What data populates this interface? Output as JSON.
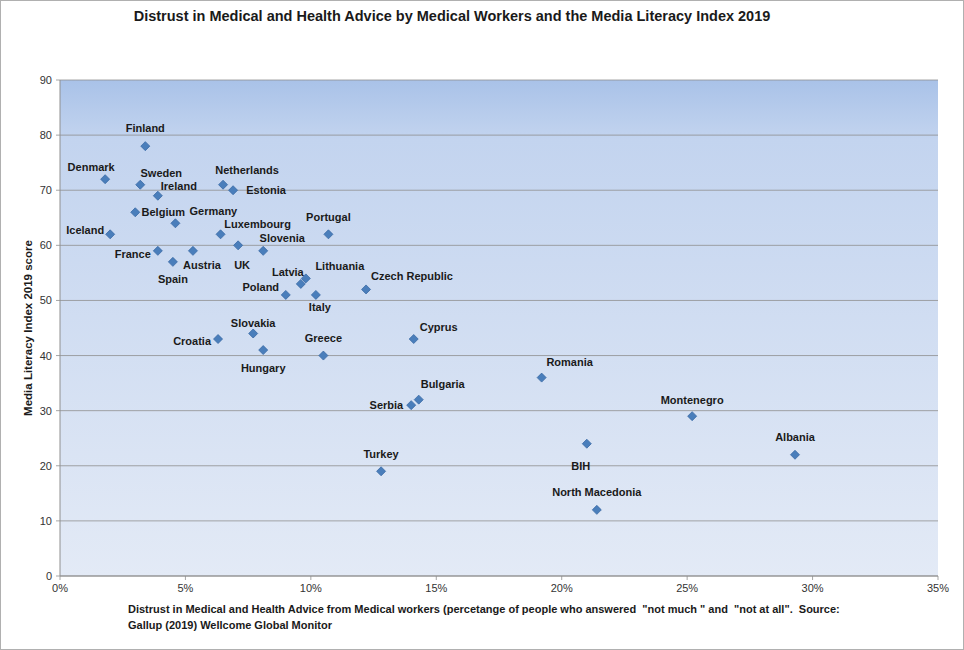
{
  "chart_data": {
    "type": "scatter",
    "title": "Distrust in Medical and Health Advice by Medical Workers and the Media Literacy Index 2019",
    "xlabel": "Distrust in Medical and Health Advice from Medical workers (percetange of people who answered  \"not much \" and  \"not at all\".  Source: Gallup (2019) Wellcome Global Monitor",
    "ylabel": "Media Literacy Index 2019 score",
    "labels": [
      "Finland",
      "Denmark",
      "Sweden",
      "Ireland",
      "Netherlands",
      "Estonia",
      "Belgium",
      "Germany",
      "Iceland",
      "Luxembourg",
      "Portugal",
      "France",
      "Austria",
      "UK",
      "Slovenia",
      "Spain",
      "Latvia",
      "Lithuania",
      "Poland",
      "Italy",
      "Czech Republic",
      "Slovakia",
      "Croatia",
      "Hungary",
      "Greece",
      "Cyprus",
      "Romania",
      "Bulgaria",
      "Serbia",
      "Montenegro",
      "Turkey",
      "BIH",
      "Albania",
      "North Macedonia"
    ],
    "x": [
      3.4,
      1.8,
      3.2,
      3.9,
      6.5,
      6.9,
      3.0,
      4.6,
      2.0,
      6.4,
      10.7,
      3.9,
      5.3,
      7.1,
      8.1,
      4.5,
      9.6,
      9.8,
      9.0,
      10.2,
      12.2,
      7.7,
      6.3,
      8.1,
      10.5,
      14.1,
      19.2,
      14.3,
      14.0,
      25.2,
      12.8,
      21.0,
      29.3,
      21.4
    ],
    "values": [
      78,
      72,
      71,
      69,
      71,
      70,
      66,
      64,
      62,
      62,
      62,
      59,
      59,
      60,
      59,
      57,
      53,
      54,
      51,
      51,
      52,
      44,
      43,
      41,
      40,
      43,
      36,
      32,
      31,
      29,
      19,
      24,
      22,
      12
    ],
    "color": "#4a7ebb",
    "marker": "diamond",
    "grid": true,
    "xlim": [
      0,
      35
    ],
    "xticks": [
      {
        "value": 0,
        "label": "0%"
      },
      {
        "value": 5,
        "label": "5%"
      },
      {
        "value": 10,
        "label": "10%"
      },
      {
        "value": 15,
        "label": "15%"
      },
      {
        "value": 20,
        "label": "20%"
      },
      {
        "value": 25,
        "label": "25%"
      },
      {
        "value": 30,
        "label": "30%"
      },
      {
        "value": 35,
        "label": "35%"
      }
    ],
    "ylim": [
      0,
      90
    ],
    "yticks": [
      0,
      10,
      20,
      30,
      40,
      50,
      60,
      70,
      80,
      90
    ]
  }
}
